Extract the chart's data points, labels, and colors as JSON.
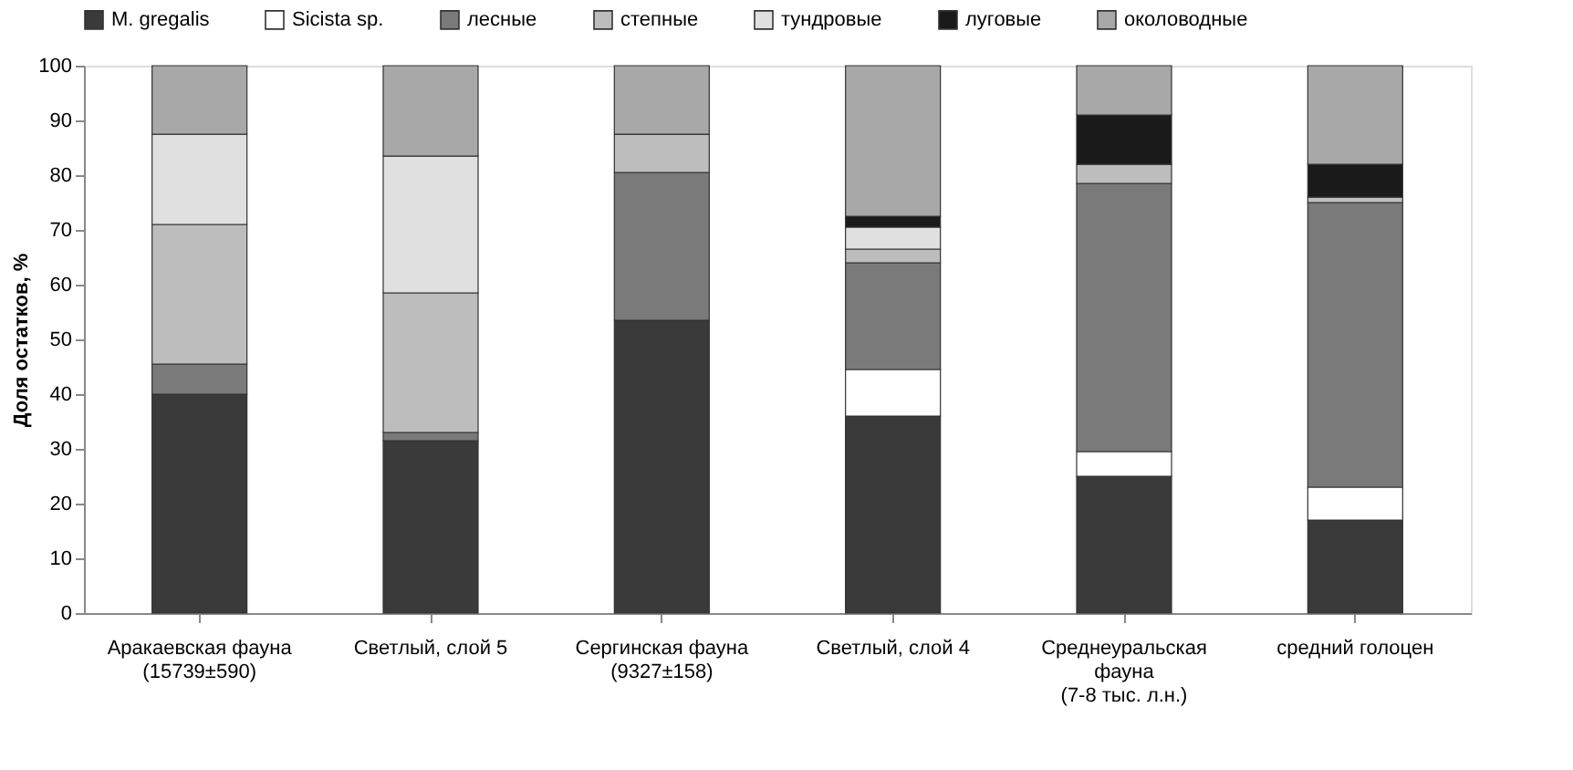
{
  "chart_data": {
    "type": "bar",
    "stacked": true,
    "ylabel": "Доля остатков, %",
    "categories": [
      "Аракаевская фауна\n(15739±590)",
      "Светлый, слой 5",
      "Сергинская фауна\n(9327±158)",
      "Светлый, слой 4",
      "Среднеуральская\nфауна\n(7-8 тыс. л.н.)",
      "средний голоцен"
    ],
    "series": [
      {
        "name": "M. gregalis",
        "color": "#3a3a3a",
        "values": [
          40,
          31.5,
          53.5,
          36,
          25,
          17
        ]
      },
      {
        "name": "Sicista sp.",
        "color": "#ffffff",
        "values": [
          0,
          0,
          0,
          8.5,
          4.5,
          6
        ]
      },
      {
        "name": "лесные",
        "color": "#7a7a7a",
        "values": [
          5.5,
          1.5,
          27,
          19.5,
          49,
          52
        ]
      },
      {
        "name": "степные",
        "color": "#bdbdbd",
        "values": [
          25.5,
          25.5,
          7,
          2.5,
          3.5,
          1
        ]
      },
      {
        "name": "тундровые",
        "color": "#e0e0e0",
        "values": [
          16.5,
          25,
          0,
          4,
          0,
          0
        ]
      },
      {
        "name": "луговые",
        "color": "#1a1a1a",
        "values": [
          0,
          0,
          0,
          2,
          9,
          6
        ]
      },
      {
        "name": "околоводные",
        "color": "#a8a8a8",
        "values": [
          12.5,
          16.5,
          12.5,
          27.5,
          9,
          18
        ]
      }
    ],
    "ylim": [
      0,
      100
    ],
    "yticks": [
      0,
      10,
      20,
      30,
      40,
      50,
      60,
      70,
      80,
      90,
      100
    ],
    "grid": false,
    "legend": "top"
  }
}
